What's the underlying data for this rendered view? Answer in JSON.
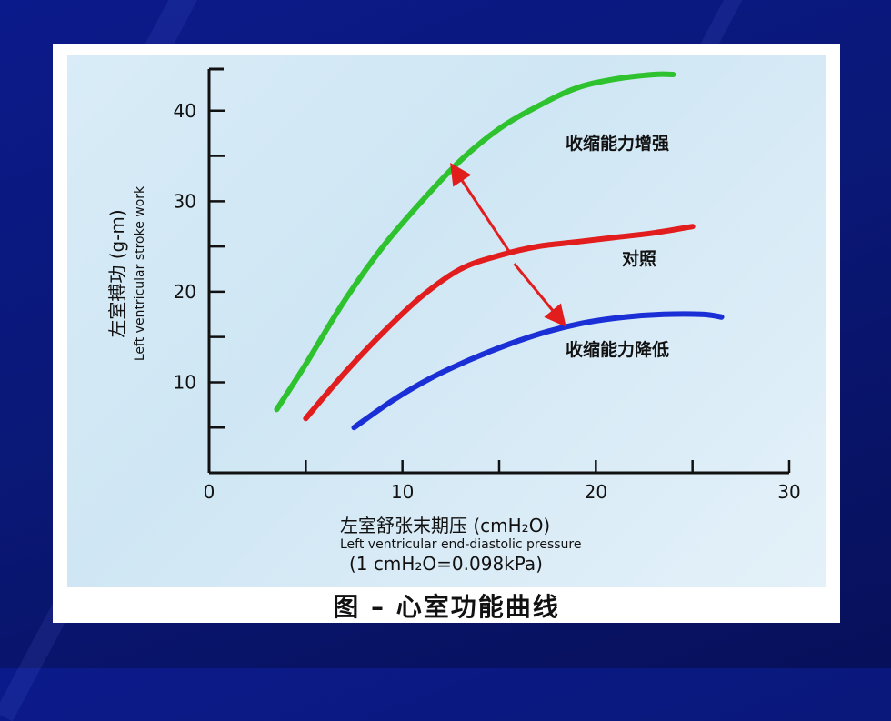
{
  "chart_data": {
    "type": "line",
    "xlabel": "左室舒张末期压 (cmH₂O)",
    "xlabel_en": "Left ventricular end-diastolic pressure",
    "x_note": "(1 cmH₂O=0.098kPa)",
    "ylabel": "左室搏功 (g-m)",
    "ylabel_en": "Left ventricular stroke work",
    "xlim": [
      0,
      30
    ],
    "ylim": [
      0,
      45
    ],
    "x_ticks": [
      0,
      10,
      20,
      30
    ],
    "y_ticks": [
      10,
      20,
      30,
      40
    ],
    "series": [
      {
        "name": "收缩能力增强",
        "color": "#2ec22e",
        "points": [
          [
            3.5,
            7
          ],
          [
            5,
            12
          ],
          [
            7,
            19
          ],
          [
            9,
            25
          ],
          [
            11,
            30
          ],
          [
            13,
            34.5
          ],
          [
            15,
            38
          ],
          [
            17,
            40.5
          ],
          [
            19,
            42.5
          ],
          [
            21,
            43.5
          ],
          [
            23,
            44
          ],
          [
            24,
            44
          ]
        ]
      },
      {
        "name": "对照",
        "color": "#e21d1d",
        "points": [
          [
            5,
            6
          ],
          [
            7,
            11
          ],
          [
            9,
            15.5
          ],
          [
            11,
            19.5
          ],
          [
            13,
            22.5
          ],
          [
            15,
            24
          ],
          [
            17,
            25
          ],
          [
            19,
            25.5
          ],
          [
            21,
            26
          ],
          [
            23,
            26.5
          ],
          [
            25,
            27.2
          ]
        ]
      },
      {
        "name": "收缩能力降低",
        "color": "#1a2fd6",
        "points": [
          [
            7.5,
            5
          ],
          [
            9.5,
            8
          ],
          [
            11.5,
            10.5
          ],
          [
            13.5,
            12.5
          ],
          [
            15.5,
            14.2
          ],
          [
            17.5,
            15.6
          ],
          [
            19.5,
            16.6
          ],
          [
            21.5,
            17.2
          ],
          [
            23.5,
            17.5
          ],
          [
            25.5,
            17.5
          ],
          [
            26.5,
            17.2
          ]
        ]
      }
    ],
    "annotations": [
      {
        "type": "double-arrow",
        "from": [
          12.7,
          33.5
        ],
        "to": [
          18.2,
          16.8
        ],
        "via": [
          15.5,
          24.5
        ],
        "color": "#e21d1d"
      }
    ]
  },
  "caption": "图 – 心室功能曲线"
}
